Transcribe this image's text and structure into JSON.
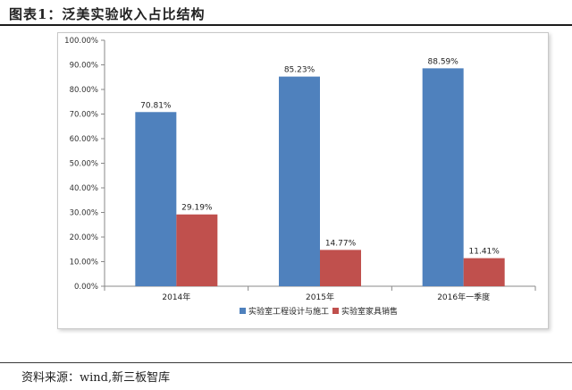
{
  "header": {
    "title": "图表1：泛美实验收入占比结构"
  },
  "footer": {
    "source": "资料来源：wind,新三板智库"
  },
  "colors": {
    "series_1": "#4F81BD",
    "series_2": "#C0504D"
  },
  "chart_data": {
    "type": "bar",
    "title": "",
    "xlabel": "",
    "ylabel": "",
    "categories": [
      "2014年",
      "2015年",
      "2016年一季度"
    ],
    "series": [
      {
        "name": "实验室工程设计与施工",
        "values": [
          70.81,
          85.23,
          88.59
        ],
        "labels": [
          "70.81%",
          "85.23%",
          "88.59%"
        ]
      },
      {
        "name": "实验室家具销售",
        "values": [
          29.19,
          14.77,
          11.41
        ],
        "labels": [
          "29.19%",
          "14.77%",
          "11.41%"
        ]
      }
    ],
    "ylim": [
      0,
      100
    ],
    "yticks": [
      "0.00%",
      "10.00%",
      "20.00%",
      "30.00%",
      "40.00%",
      "50.00%",
      "60.00%",
      "70.00%",
      "80.00%",
      "90.00%",
      "100.00%"
    ],
    "grid": false,
    "legend": "bottom"
  }
}
